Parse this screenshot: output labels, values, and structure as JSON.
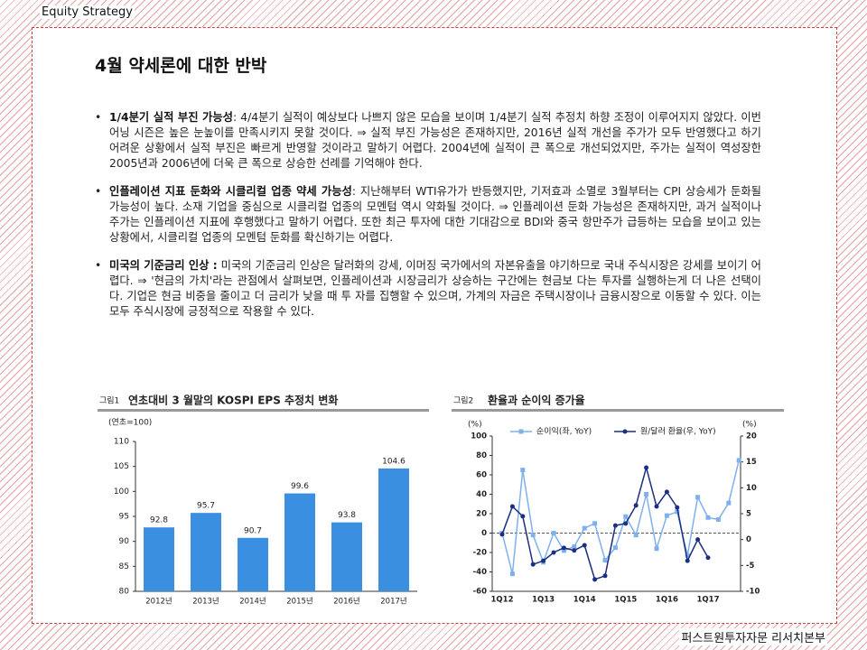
{
  "header": {
    "section": "Equity Strategy",
    "footer": "퍼스트원투자자문 리서치본부"
  },
  "title": "4월 약세론에 대한 반박",
  "bullets": [
    {
      "lead": "1/4분기 실적 부진 가능성",
      "text": ": 4/4분기 실적이 예상보다 나쁘지 않은 모습을 보이며 1/4분기 실적 추정치 하향 조정이 이루어지지 않았다. 이번 어닝 시즌은 높은 눈높이를 만족시키지 못할 것이다. ⇒ 실적 부진 가능성은 존재하지만, 2016년 실적 개선을 주가가 모두 반영했다고 하기 어려운 상황에서 실적 부진은 빠르게 반영할 것이라고 말하기 어렵다. 2004년에 실적이 큰 폭으로 개선되었지만, 주가는 실적이 역성장한 2005년과 2006년에 더욱 큰 폭으로 상승한 선례를 기억해야 한다."
    },
    {
      "lead": "인플레이션 지표 둔화와 시클리컬 업종 약세 가능성",
      "text": ": 지난해부터 WTI유가가 반등했지만, 기저효과 소멸로 3월부터는 CPI 상승세가 둔화될 가능성이 높다. 소재 기업을 중심으로 시클리컬 업종의 모멘텀 역시 약화될 것이다. ⇒ 인플레이션 둔화 가능성은 존재하지만, 과거 실적이나 주가는 인플레이션 지표에 후행했다고 말하기 어렵다. 또한 최근 투자에 대한 기대감으로 BDI와 중국 항만주가 급등하는 모습을 보이고 있는 상황에서, 시클리컬 업종의 모멘텀 둔화를 확신하기는 어렵다."
    },
    {
      "lead": "미국의 기준금리 인상 :",
      "text": " 미국의 기준금리 인상은 달러화의 강세, 이머징 국가에서의 자본유출을 야기하므로 국내 주식시장은 강세를 보이기 어렵다. ⇒ '현금의 가치'라는 관점에서 살펴보면, 인플레이션과 시장금리가 상승하는 구간에는 현금보 다는 투자를 실행하는게 더 나은 선택이다. 기업은 현금 비중을 줄이고 더 금리가 낮을 때 투 자를 집행할 수 있으며, 가계의 자금은 주택시장이나 금융시장으로 이동할 수 있다. 이는 모두 주식시장에 긍정적으로 작용할 수 있다."
    }
  ],
  "chart_data": [
    {
      "type": "bar",
      "figure_label": "그림1",
      "title": "연초대비 3 월말의 KOSPI EPS 추정치 변화",
      "y_label": "(연초=100)",
      "categories": [
        "2012년",
        "2013년",
        "2014년",
        "2015년",
        "2016년",
        "2017년"
      ],
      "values": [
        92.8,
        95.7,
        90.7,
        99.6,
        93.8,
        104.6
      ],
      "color": "#3b8fe0",
      "ylim": [
        80,
        110
      ],
      "yticks": [
        80,
        85,
        90,
        95,
        100,
        105,
        110
      ]
    },
    {
      "type": "line",
      "figure_label": "그림2",
      "title": "환율과 순이익 증가율",
      "y_label": "(%)",
      "y2_label": "(%)",
      "categories": [
        "1Q12",
        null,
        null,
        null,
        "1Q13",
        null,
        null,
        null,
        "1Q14",
        null,
        null,
        null,
        "1Q15",
        null,
        null,
        null,
        "1Q16",
        null,
        null,
        null,
        "1Q17",
        null,
        null,
        null
      ],
      "series": [
        {
          "name": "순이익(좌, YoY)",
          "color": "#7fb0ee",
          "values": [
            0,
            -42,
            65,
            -2,
            -30,
            0,
            -18,
            -14,
            5,
            10,
            -28,
            -15,
            17,
            -2,
            40,
            -16,
            18,
            22,
            -23,
            37,
            16,
            14,
            31,
            75
          ]
        },
        {
          "name": "원/달러 환율(우, YoY)",
          "color": "#1a2f80",
          "axis": "y2",
          "values": [
            1,
            6.4,
            4.5,
            -4.8,
            -4.1,
            -2.5,
            -1.6,
            -2.1,
            -1.1,
            -7.7,
            -7,
            2.7,
            3.1,
            6.6,
            13.9,
            6.4,
            9.2,
            6.2,
            -4.1,
            0,
            -3.5,
            null,
            null,
            null
          ]
        }
      ],
      "ylim": [
        -60,
        100
      ],
      "yticks": [
        -60,
        -40,
        -20,
        0,
        20,
        40,
        60,
        80,
        100
      ],
      "y2lim": [
        -10,
        20
      ],
      "y2ticks": [
        -10,
        -5,
        0,
        5,
        10,
        15,
        20
      ]
    }
  ]
}
